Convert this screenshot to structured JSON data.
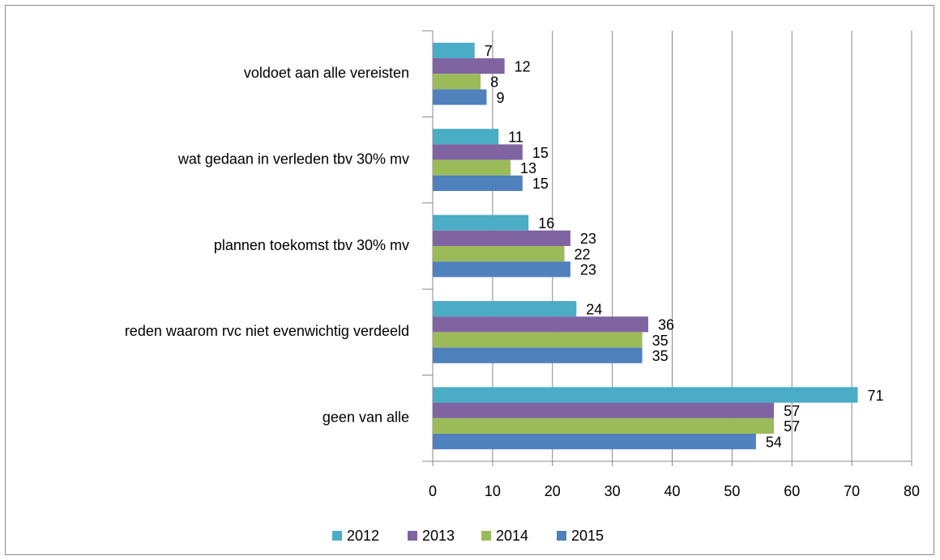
{
  "chart_data": {
    "type": "bar",
    "orientation": "horizontal",
    "categories": [
      "voldoet aan alle vereisten",
      "wat gedaan in verleden tbv 30%  mv",
      "plannen toekomst tbv 30% mv",
      "reden waarom rvc niet evenwichtig verdeeld",
      "geen van alle"
    ],
    "series": [
      {
        "name": "2012",
        "color": "#4bacc6",
        "values": [
          7,
          11,
          16,
          24,
          71
        ]
      },
      {
        "name": "2013",
        "color": "#8064a2",
        "values": [
          12,
          15,
          23,
          36,
          57
        ]
      },
      {
        "name": "2014",
        "color": "#9bbb59",
        "values": [
          8,
          13,
          22,
          35,
          57
        ]
      },
      {
        "name": "2015",
        "color": "#4f81bd",
        "values": [
          9,
          15,
          23,
          35,
          54
        ]
      }
    ],
    "xlim": [
      0,
      80
    ],
    "xticks": [
      0,
      10,
      20,
      30,
      40,
      50,
      60,
      70,
      80
    ],
    "grid": true,
    "legend": "bottom"
  }
}
